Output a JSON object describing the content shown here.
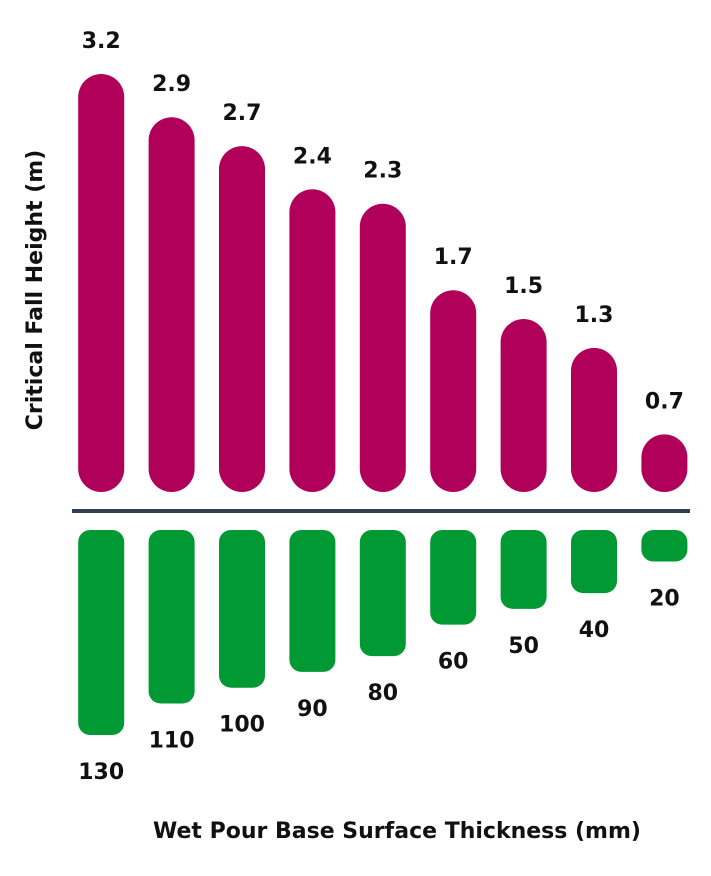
{
  "chart_data": {
    "type": "mirrored-bar",
    "ylabel": "Critical Fall Height (m)",
    "xlabel": "Wet Pour Base Surface Thickness (mm)",
    "ylim": [
      0.3,
      3.2
    ],
    "y2lim": [
      0,
      130
    ],
    "series": [
      {
        "color": "#b0005a",
        "values": [
          3.2,
          2.9,
          2.7,
          2.4,
          2.3,
          1.7,
          1.5,
          1.3,
          0.7
        ]
      },
      {
        "color": "#009933",
        "axis": "y2",
        "values": [
          130,
          110,
          100,
          90,
          80,
          60,
          50,
          40,
          20
        ]
      }
    ]
  }
}
